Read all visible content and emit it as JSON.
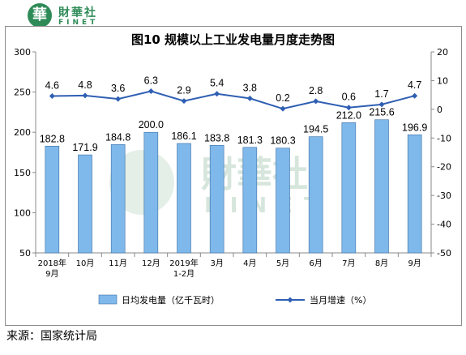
{
  "logo": {
    "glyph": "華",
    "cn": "財華社",
    "en": "FINET"
  },
  "watermark": {
    "cn": "財華社",
    "en": "FINET"
  },
  "source": "来源：国家统计局",
  "chart_data": {
    "type": "bar+line",
    "title": "图10  规模以上工业发电量月度走势图",
    "categories": [
      [
        "2018年",
        "9月"
      ],
      [
        "10月"
      ],
      [
        "11月"
      ],
      [
        "12月"
      ],
      [
        "2019年",
        "1-2月"
      ],
      [
        "3月"
      ],
      [
        "4月"
      ],
      [
        "5月"
      ],
      [
        "6月"
      ],
      [
        "7月"
      ],
      [
        "8月"
      ],
      [
        "9月"
      ]
    ],
    "y_left": {
      "min": 50,
      "max": 300,
      "ticks": [
        50,
        100,
        150,
        200,
        250,
        300
      ]
    },
    "y_right": {
      "min": -50,
      "max": 20,
      "ticks": [
        -50,
        -40,
        -30,
        -20,
        -10,
        0,
        10,
        20
      ]
    },
    "series": [
      {
        "name": "日均发电量（亿千瓦时）",
        "type": "bar",
        "axis": "left",
        "color": "#7fb8ea",
        "values": [
          182.8,
          171.9,
          184.8,
          200.0,
          186.1,
          183.8,
          181.3,
          180.3,
          194.5,
          212.0,
          215.6,
          196.9
        ],
        "labels": [
          "182.8",
          "171.9",
          "184.8",
          "200.0",
          "186.1",
          "183.8",
          "181.3",
          "180.3",
          "194.5",
          "212.0",
          "215.6",
          "196.9"
        ]
      },
      {
        "name": "当月增速（%）",
        "type": "line",
        "axis": "right",
        "color": "#2f5fb3",
        "values": [
          4.6,
          4.8,
          3.6,
          6.3,
          2.9,
          5.4,
          3.8,
          0.2,
          2.8,
          0.6,
          1.7,
          4.7
        ],
        "labels": [
          "4.6",
          "4.8",
          "3.6",
          "6.3",
          "2.9",
          "5.4",
          "3.8",
          "0.2",
          "2.8",
          "0.6",
          "1.7",
          "4.7"
        ]
      }
    ],
    "legend_position": "bottom",
    "grid": false
  }
}
